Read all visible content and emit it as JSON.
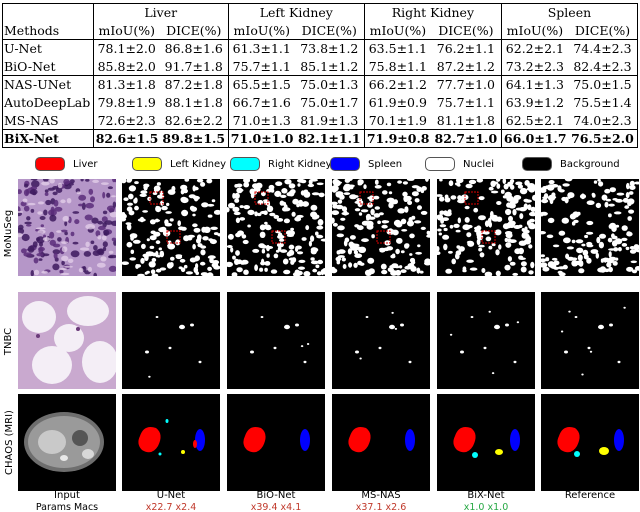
{
  "table": {
    "methods_header": "Methods",
    "organs": [
      "Liver",
      "Left Kidney",
      "Right Kidney",
      "Spleen"
    ],
    "metrics": [
      "mIoU(%)",
      "DICE(%)"
    ],
    "rows": [
      {
        "method": "U-Net",
        "values": [
          "78.1±2.0",
          "86.8±1.6",
          "61.3±1.1",
          "73.8±1.2",
          "63.5±1.1",
          "76.2±1.1",
          "62.2±2.1",
          "74.4±2.3"
        ]
      },
      {
        "method": "BiO-Net",
        "values": [
          "85.8±2.0",
          "91.7±1.8",
          "75.7±1.1",
          "85.1±1.2",
          "75.8±1.1",
          "87.2±1.2",
          "73.2±2.3",
          "82.4±2.3"
        ]
      },
      {
        "method": "NAS-UNet",
        "values": [
          "81.3±1.8",
          "87.2±1.8",
          "65.5±1.5",
          "75.0±1.3",
          "66.2±1.2",
          "77.7±1.0",
          "64.1±1.3",
          "75.0±1.5"
        ]
      },
      {
        "method": "AutoDeepLab",
        "values": [
          "79.8±1.9",
          "88.1±1.8",
          "66.7±1.6",
          "75.0±1.7",
          "61.9±0.9",
          "75.7±1.1",
          "63.9±1.2",
          "75.5±1.4"
        ]
      },
      {
        "method": "MS-NAS",
        "values": [
          "72.6±2.3",
          "82.6±2.2",
          "71.0±1.3",
          "81.9±1.3",
          "70.1±1.9",
          "81.1±1.8",
          "62.5±2.1",
          "74.0±2.3"
        ]
      },
      {
        "method": "BiX-Net",
        "values": [
          "82.6±1.5",
          "89.8±1.5",
          "71.0±1.0",
          "82.1±1.1",
          "71.9±0.8",
          "82.7±1.0",
          "66.0±1.7",
          "76.5±2.0"
        ]
      }
    ]
  },
  "legend": [
    {
      "label": "Liver",
      "color": "#ff0000"
    },
    {
      "label": "Left Kidney",
      "color": "#ffff00"
    },
    {
      "label": "Right Kidney",
      "color": "#00ffff"
    },
    {
      "label": "Spleen",
      "color": "#0000ff"
    },
    {
      "label": "Nuclei",
      "color": "#ffffff"
    },
    {
      "label": "Background",
      "color": "#000000"
    }
  ],
  "row_labels": [
    "MoNuSeg",
    "TNBC",
    "CHAOS (MRI)"
  ],
  "columns": [
    {
      "name": "Input",
      "params": "Params",
      "macs": "Macs",
      "stat_color": "#000000"
    },
    {
      "name": "U-Net",
      "params": "x22.7",
      "macs": "x2.4",
      "stat_color": "#c0392b"
    },
    {
      "name": "BiO-Net",
      "params": "x39.4",
      "macs": "x4.1",
      "stat_color": "#c0392b"
    },
    {
      "name": "MS-NAS",
      "params": "x37.1",
      "macs": "x2.6",
      "stat_color": "#c0392b"
    },
    {
      "name": "BiX-Net",
      "params": "x1.0",
      "macs": "x1.0",
      "stat_color": "#27a844"
    },
    {
      "name": "Reference",
      "params": "",
      "macs": "",
      "stat_color": "#000000"
    }
  ]
}
